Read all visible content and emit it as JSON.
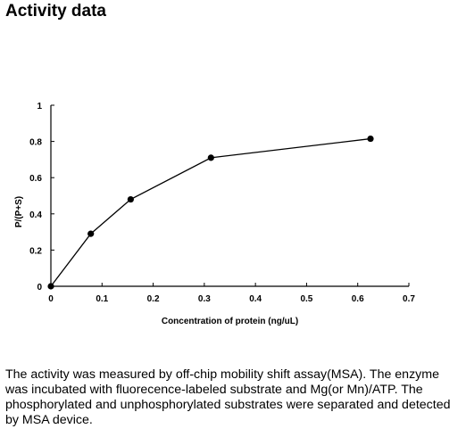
{
  "page": {
    "title": "Activity data",
    "description": "The activity was measured by off-chip mobility shift assay(MSA). The enzyme was incubated with fluorecence-labeled  substrate and Mg(or Mn)/ATP. The phosphorylated and unphosphorylated substrates were separated and detected by MSA device."
  },
  "chart_data": {
    "type": "line",
    "title": "",
    "xlabel": "Concentration of protein (ng/uL)",
    "ylabel": "P/(P+S)",
    "xlim": [
      0,
      0.7
    ],
    "ylim": [
      0,
      1
    ],
    "x_ticks": [
      "0",
      "0.1",
      "0.2",
      "0.3",
      "0.4",
      "0.5",
      "0.6",
      "0.7"
    ],
    "y_ticks": [
      "0",
      "0.2",
      "0.4",
      "0.6",
      "0.8",
      "1"
    ],
    "grid": false,
    "series": [
      {
        "x": [
          0,
          0.078,
          0.156,
          0.313,
          0.625
        ],
        "y": [
          0,
          0.29,
          0.48,
          0.71,
          0.815
        ],
        "color": "#000000"
      }
    ]
  }
}
